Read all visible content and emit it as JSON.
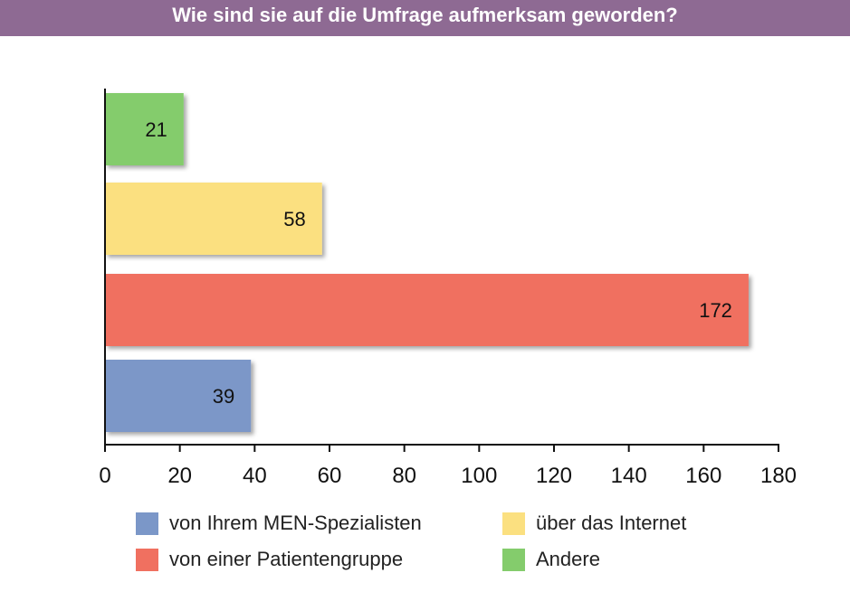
{
  "title": "Wie sind sie auf die Umfrage aufmerksam geworden?",
  "chart_data": {
    "type": "bar",
    "orientation": "horizontal",
    "categories": [
      "von Ihrem MEN-Spezialisten",
      "von einer Patientengruppe",
      "über das Internet",
      "Andere"
    ],
    "values": [
      39,
      172,
      58,
      21
    ],
    "colors": [
      "#7b97c8",
      "#f07060",
      "#fbe080",
      "#84cc6c"
    ],
    "value_labels": [
      "39",
      "172",
      "58",
      "21"
    ],
    "xlim": [
      0,
      180
    ],
    "xticks": [
      0,
      20,
      40,
      60,
      80,
      100,
      120,
      140,
      160,
      180
    ],
    "xlabel": "",
    "ylabel": "",
    "grid": false,
    "legend_position": "bottom"
  },
  "legend": {
    "items": [
      {
        "label": "von Ihrem MEN-Spezialisten",
        "color": "#7b97c8"
      },
      {
        "label": "über das Internet",
        "color": "#fbe080"
      },
      {
        "label": "von einer Patientengruppe",
        "color": "#f07060"
      },
      {
        "label": "Andere",
        "color": "#84cc6c"
      }
    ]
  }
}
